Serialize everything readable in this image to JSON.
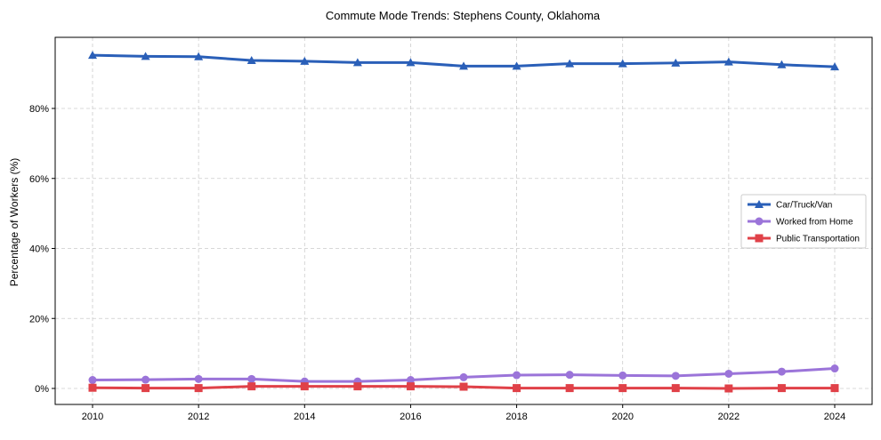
{
  "chart_data": {
    "type": "line",
    "title": "Commute Mode Trends: Stephens County, Oklahoma",
    "xlabel": "",
    "ylabel": "Percentage of Workers (%)",
    "x": [
      2010,
      2011,
      2012,
      2013,
      2014,
      2015,
      2016,
      2017,
      2018,
      2019,
      2020,
      2021,
      2022,
      2023,
      2024
    ],
    "xticks": [
      2010,
      2012,
      2014,
      2016,
      2018,
      2020,
      2022,
      2024
    ],
    "yticks": [
      0,
      20,
      40,
      60,
      80
    ],
    "ytick_labels": [
      "0%",
      "20%",
      "40%",
      "60%",
      "80%"
    ],
    "ylim": [
      -4.5,
      100.5
    ],
    "xlim": [
      2009.25,
      2025.0
    ],
    "grid": true,
    "legend_position": "center-right",
    "series": [
      {
        "name": "Car/Truck/Van",
        "color": "#2a5fb8",
        "marker": "triangle",
        "values": [
          95.2,
          94.9,
          94.8,
          93.7,
          93.5,
          93.1,
          93.1,
          92.1,
          92.1,
          92.8,
          92.8,
          93.0,
          93.3,
          92.5,
          91.9
        ]
      },
      {
        "name": "Worked from Home",
        "color": "#9b74d9",
        "marker": "circle",
        "values": [
          2.4,
          2.5,
          2.7,
          2.7,
          2.0,
          2.0,
          2.4,
          3.2,
          3.8,
          3.9,
          3.7,
          3.6,
          4.2,
          4.8,
          5.7
        ]
      },
      {
        "name": "Public Transportation",
        "color": "#e04148",
        "marker": "square",
        "values": [
          0.2,
          0.1,
          0.1,
          0.6,
          0.6,
          0.6,
          0.6,
          0.5,
          0.1,
          0.1,
          0.1,
          0.1,
          0.0,
          0.1,
          0.1
        ]
      }
    ]
  }
}
